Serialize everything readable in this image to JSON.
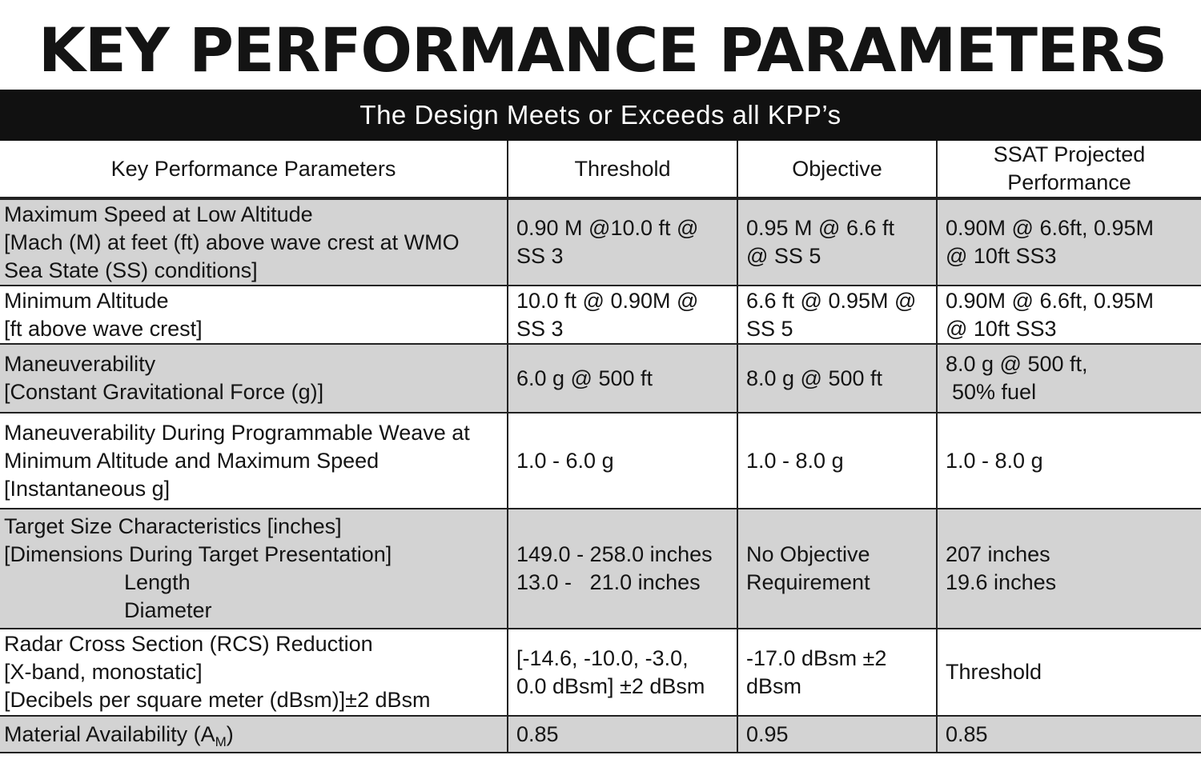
{
  "title": "KEY PERFORMANCE PARAMETERS",
  "banner": "The Design Meets or Exceeds all KPP’s",
  "table": {
    "headers": [
      "Key Performance Parameters",
      "Threshold",
      "Objective",
      "SSAT Projected",
      "Performance"
    ],
    "rows": [
      {
        "param": [
          "Maximum Speed at Low Altitude",
          "[Mach (M) at feet (ft) above wave crest at WMO",
          "Sea State (SS) conditions]"
        ],
        "threshold": [
          "0.90 M @10.0 ft @",
          "SS 3"
        ],
        "objective": [
          "0.95 M @ 6.6 ft",
          "@ SS 5"
        ],
        "ssat": [
          "0.90M @ 6.6ft, 0.95M",
          "@ 10ft SS3"
        ]
      },
      {
        "param": [
          "Minimum Altitude",
          "[ft above wave crest]"
        ],
        "threshold": [
          "10.0 ft @ 0.90M @",
          "SS 3"
        ],
        "objective": [
          "6.6 ft @ 0.95M @",
          "SS 5"
        ],
        "ssat": [
          "0.90M @ 6.6ft, 0.95M",
          "@ 10ft SS3"
        ]
      },
      {
        "param": [
          "Maneuverability",
          "[Constant Gravitational Force (g)]"
        ],
        "threshold": [
          "6.0 g @ 500 ft"
        ],
        "objective": [
          "8.0 g @ 500 ft"
        ],
        "ssat": [
          "8.0 g @ 500 ft,",
          "50% fuel"
        ]
      },
      {
        "param": [
          "Maneuverability During Programmable Weave at",
          "Minimum Altitude and Maximum Speed",
          "[Instantaneous g]"
        ],
        "threshold": [
          "1.0 - 6.0 g"
        ],
        "objective": [
          "1.0 - 8.0 g"
        ],
        "ssat": [
          "1.0 - 8.0 g"
        ]
      },
      {
        "param": [
          "Target Size Characteristics [inches]",
          "[Dimensions During Target Presentation]",
          "Length",
          "Diameter"
        ],
        "threshold": [
          "149.0 - 258.0 inches",
          "13.0 -   21.0 inches"
        ],
        "objective": [
          "No Objective",
          "Requirement"
        ],
        "ssat": [
          "207 inches",
          "19.6 inches"
        ]
      },
      {
        "param": [
          "Radar Cross Section (RCS) Reduction",
          "[X-band, monostatic]",
          "[Decibels per square meter (dBsm)]±2 dBsm"
        ],
        "threshold": [
          "[-14.6, -10.0, -3.0,",
          "0.0 dBsm] ±2 dBsm"
        ],
        "objective": [
          "-17.0 dBsm ±2",
          "dBsm"
        ],
        "ssat": [
          "Threshold"
        ]
      },
      {
        "param": [
          "Material Availability (A",
          "M",
          ")"
        ],
        "threshold": [
          "0.85"
        ],
        "objective": [
          "0.95"
        ],
        "ssat": [
          "0.85"
        ]
      }
    ]
  }
}
